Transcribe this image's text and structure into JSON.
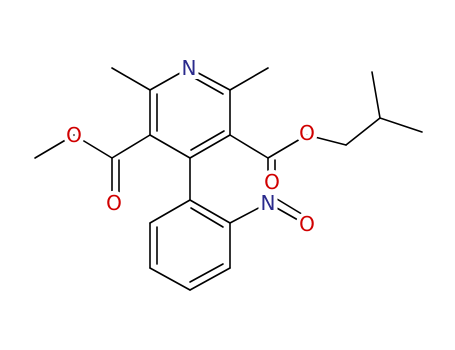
{
  "atoms": [
    {
      "label": "N"
    },
    {
      "label": "O"
    },
    {
      "label": "O"
    },
    {
      "label": "O"
    },
    {
      "label": "O"
    },
    {
      "label": "N"
    },
    {
      "label": "O"
    }
  ]
}
